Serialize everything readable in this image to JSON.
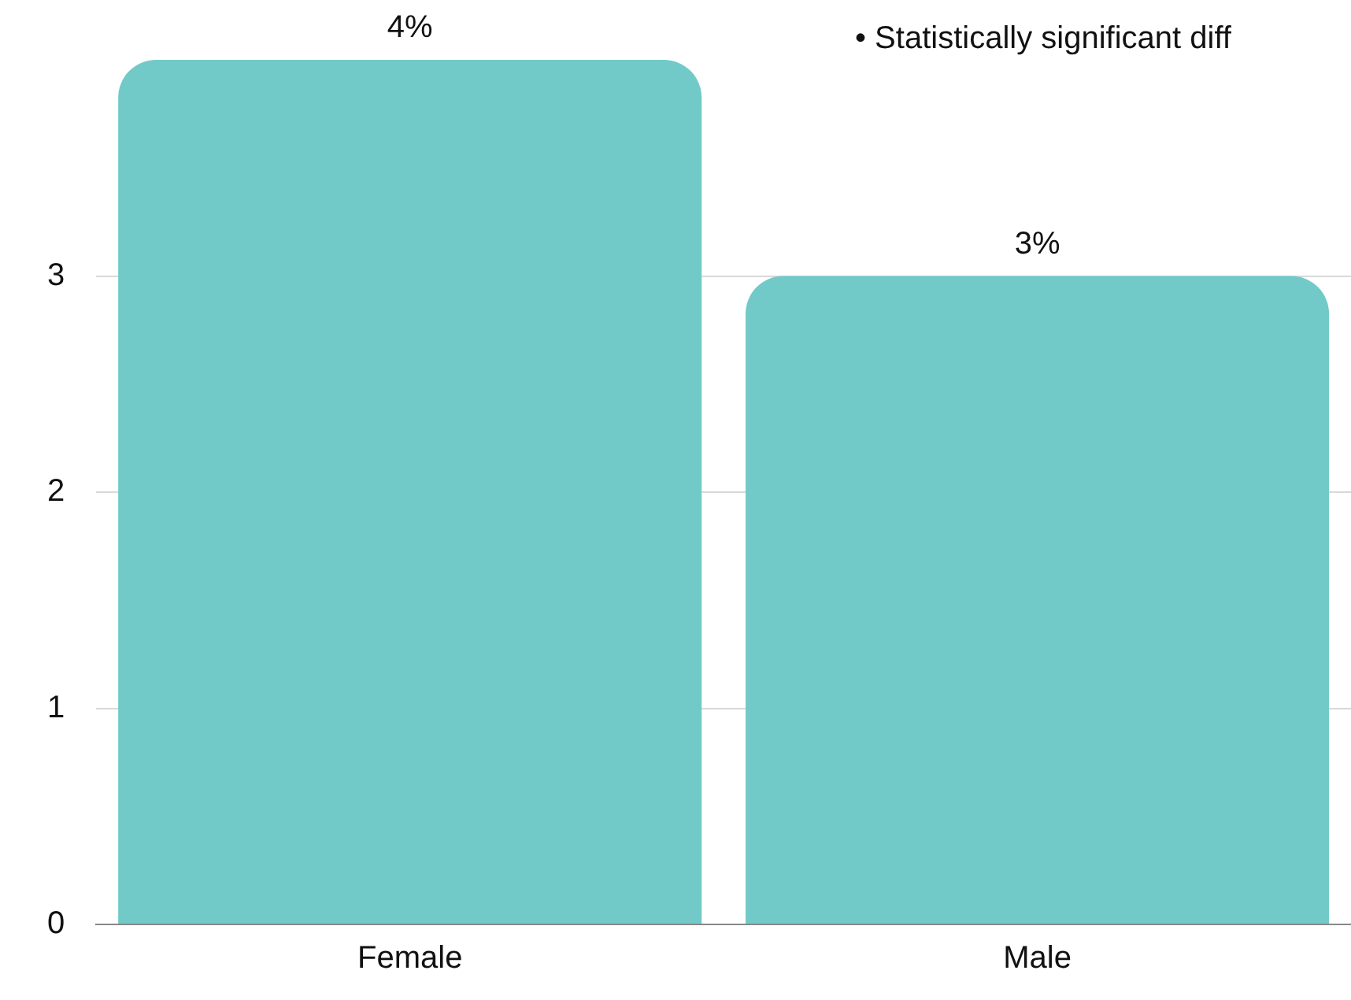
{
  "chart_data": {
    "type": "bar",
    "categories": [
      "Female",
      "Male"
    ],
    "values": [
      4,
      3
    ],
    "color": "#72cac8",
    "value_labels": [
      "4%",
      "3%"
    ],
    "ylim": [
      0,
      4
    ],
    "yticks": [
      0,
      1,
      2,
      3
    ],
    "grid": "y",
    "annotations": [
      "• Statistically significant diff"
    ]
  }
}
